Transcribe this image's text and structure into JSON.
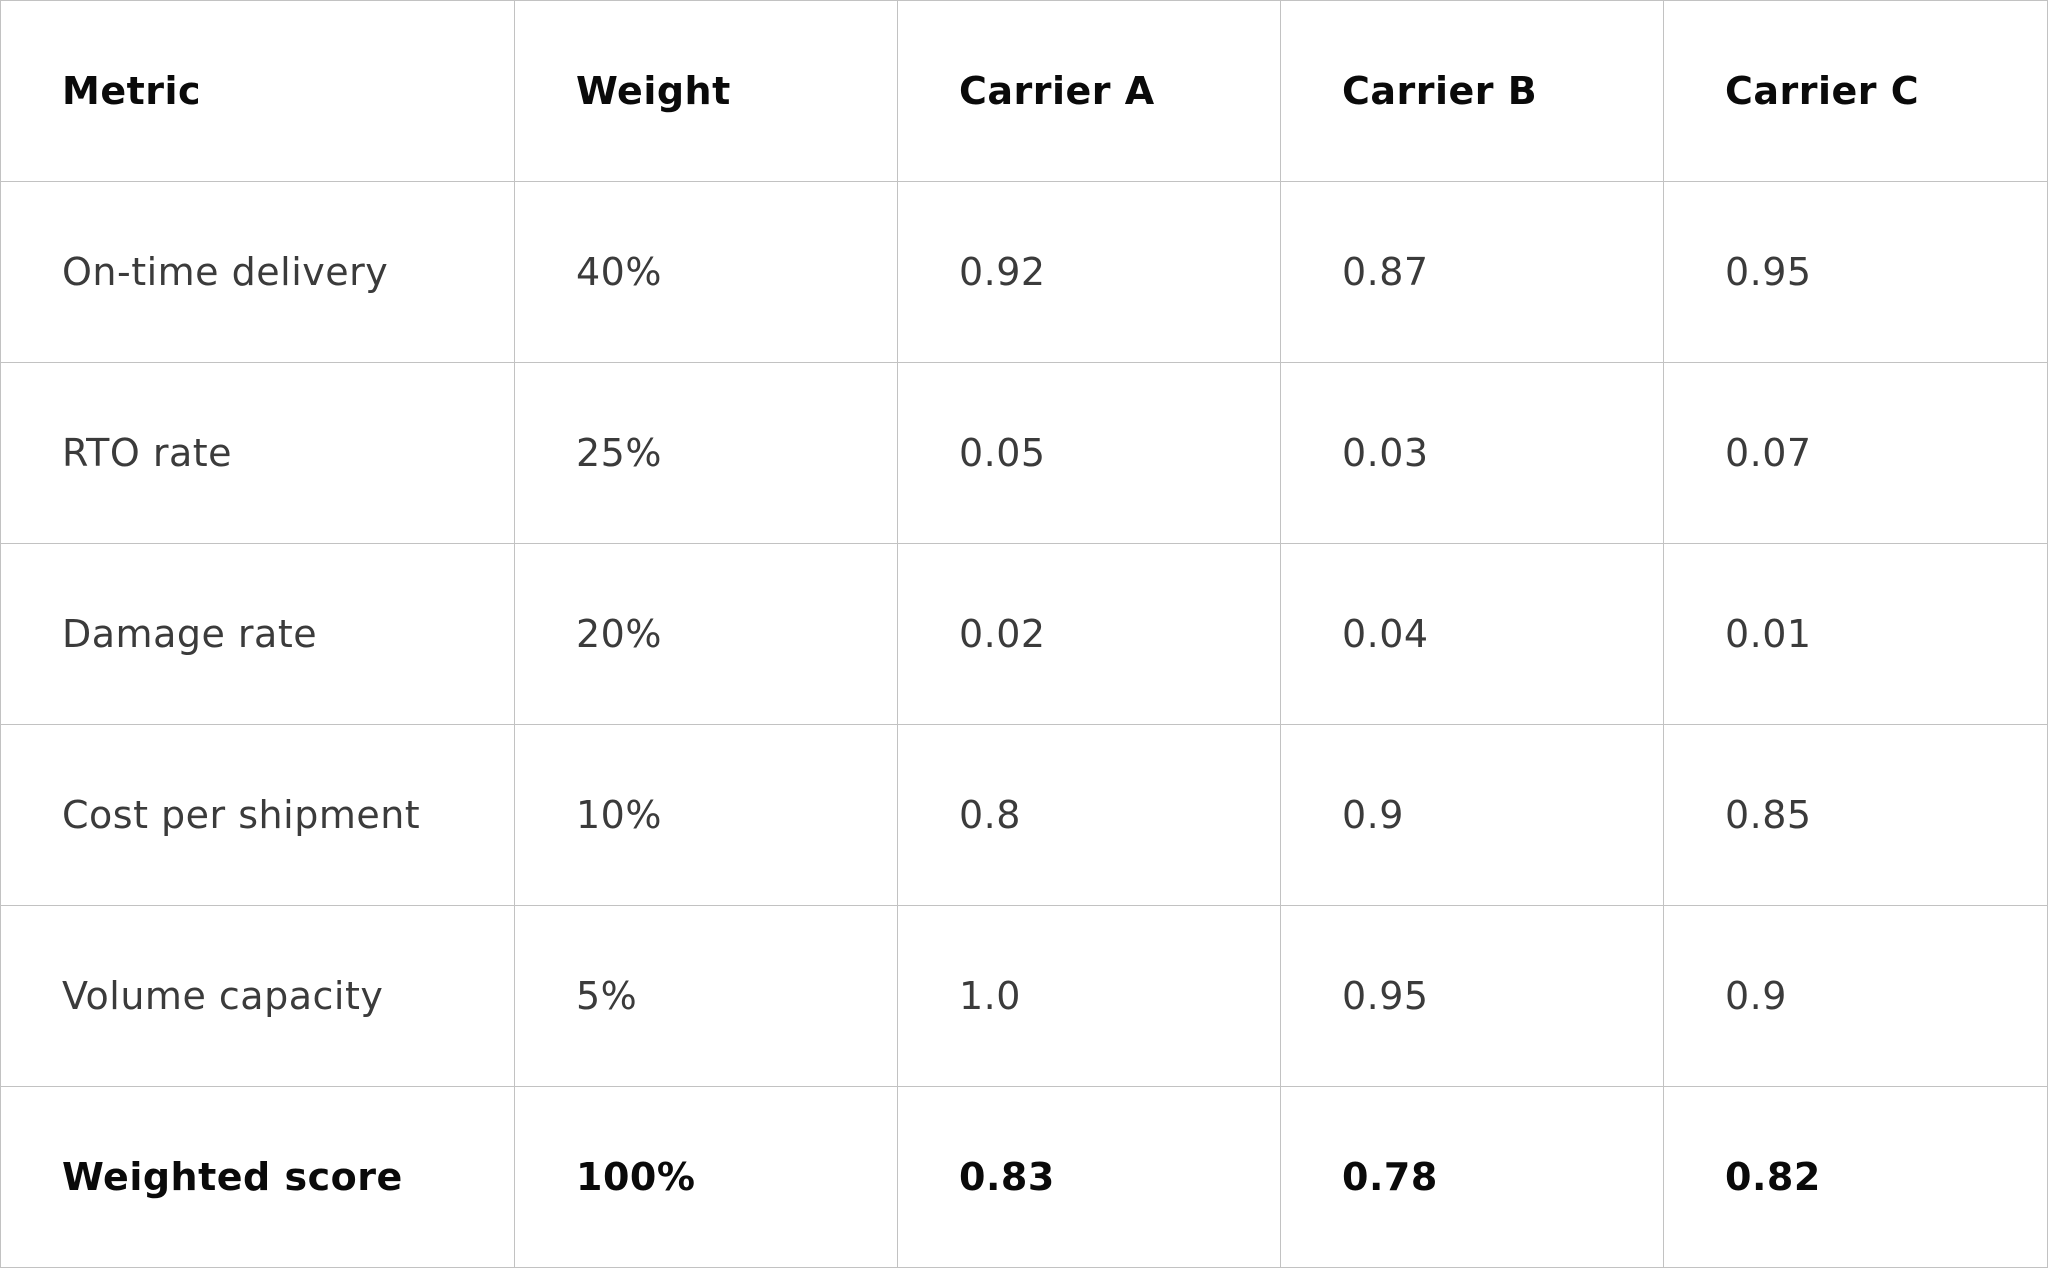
{
  "table": {
    "columns": [
      "Metric",
      "Weight",
      "Carrier A",
      "Carrier B",
      "Carrier C"
    ],
    "rows": [
      [
        "On-time delivery",
        "40%",
        "0.92",
        "0.87",
        "0.95"
      ],
      [
        "RTO rate",
        "25%",
        "0.05",
        "0.03",
        "0.07"
      ],
      [
        "Damage rate",
        "20%",
        "0.02",
        "0.04",
        "0.01"
      ],
      [
        "Cost per shipment",
        "10%",
        "0.8",
        "0.9",
        "0.85"
      ],
      [
        "Volume capacity",
        "5%",
        "1.0",
        "0.95",
        "0.9"
      ]
    ],
    "total": [
      "Weighted score",
      "100%",
      "0.83",
      "0.78",
      "0.82"
    ]
  }
}
